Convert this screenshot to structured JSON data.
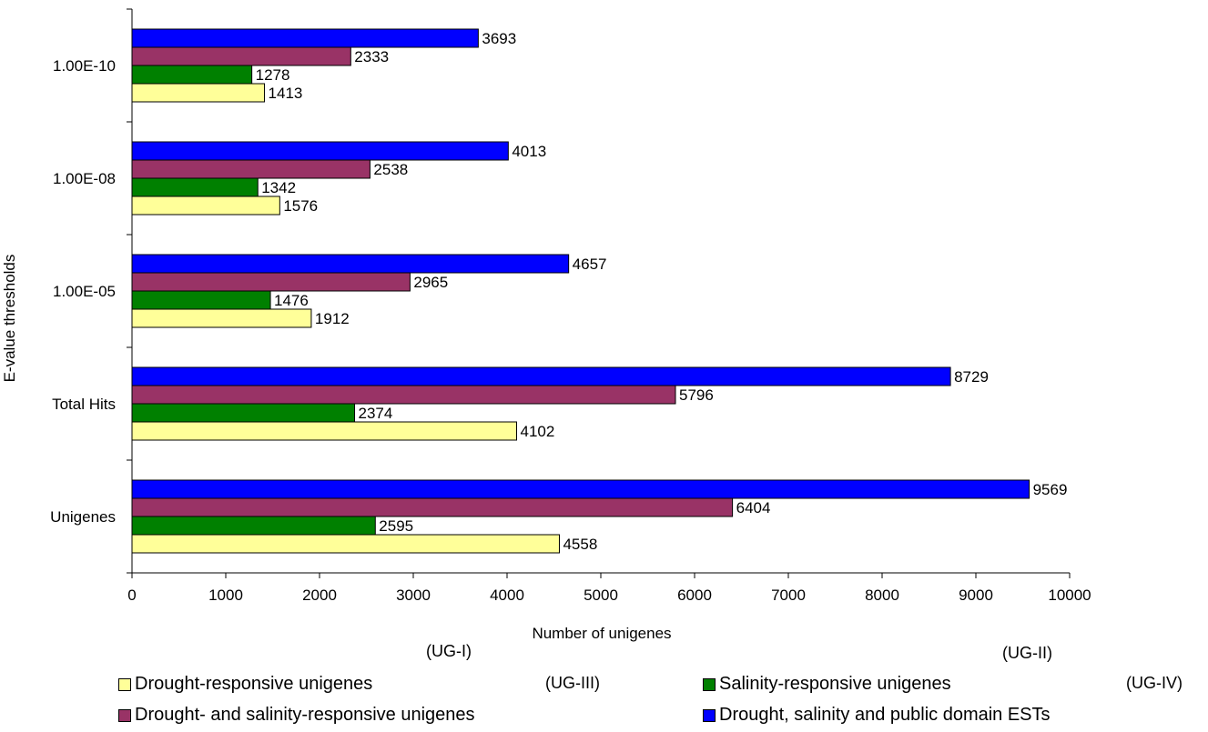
{
  "chart_data": {
    "type": "bar",
    "orientation": "horizontal",
    "categories": [
      "Unigenes",
      "Total Hits",
      "1.00E-05",
      "1.00E-08",
      "1.00E-10"
    ],
    "series": [
      {
        "name": "Drought-responsive unigenes",
        "color": "#ffff99",
        "values": [
          4558,
          4102,
          1912,
          1576,
          1413
        ]
      },
      {
        "name": "Salinity-responsive unigenes",
        "color": "#008000",
        "values": [
          2595,
          2374,
          1476,
          1342,
          1278
        ]
      },
      {
        "name": "Drought- and salinity-responsive unigenes",
        "color": "#993366",
        "values": [
          6404,
          5796,
          2965,
          2538,
          2333
        ]
      },
      {
        "name": "Drought, salinity and public domain ESTs",
        "color": "#0000ff",
        "values": [
          9569,
          8729,
          4657,
          4013,
          3693
        ]
      }
    ],
    "xlabel": "Number of unigenes",
    "ylabel": "E-value thresholds",
    "xlim": [
      0,
      10000
    ],
    "xticks": [
      "0",
      "1000",
      "2000",
      "3000",
      "4000",
      "5000",
      "6000",
      "7000",
      "8000",
      "9000",
      "10000"
    ],
    "grid": false,
    "legend_position": "bottom"
  },
  "notes": {
    "ug1": "(UG-I)",
    "ug2": "(UG-II)",
    "ug3": "(UG-III)",
    "ug4": "(UG-IV)"
  }
}
